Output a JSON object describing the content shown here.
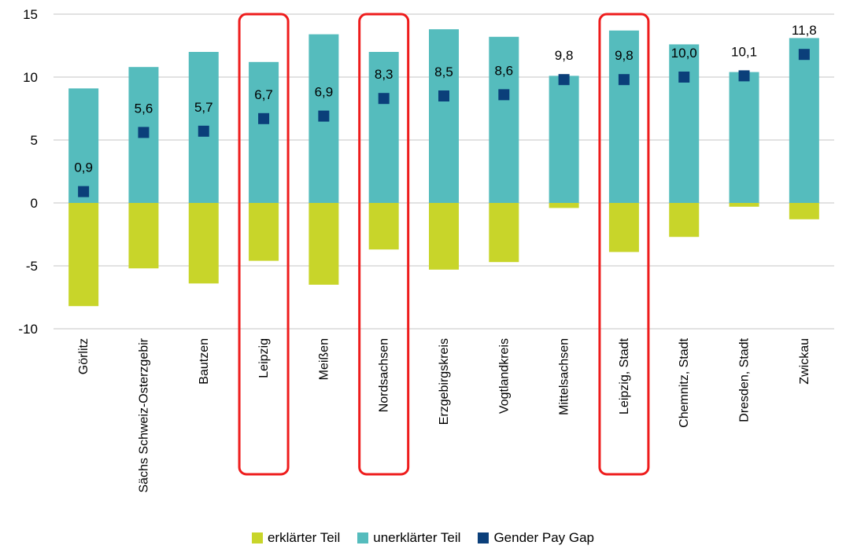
{
  "chart_data": {
    "type": "bar",
    "title": "",
    "xlabel": "",
    "ylabel": "",
    "ylim": [
      -10,
      15
    ],
    "yticks": [
      -10,
      -5,
      0,
      5,
      10,
      15
    ],
    "grid": true,
    "legend_position": "bottom",
    "categories": [
      "Görlitz",
      "Sächs Schweiz-Osterzgebir",
      "Bautzen",
      "Leipzig",
      "Meißen",
      "Nordsachsen",
      "Erzgebirgskreis",
      "Vogtlandkreis",
      "Mittelsachsen",
      "Leipzig, Stadt",
      "Chemnitz, Stadt",
      "Dresden, Stadt",
      "Zwickau"
    ],
    "series": [
      {
        "name": "erklärter Teil",
        "color": "#c8d52a",
        "values": [
          -8.2,
          -5.2,
          -6.4,
          -4.6,
          -6.5,
          -3.7,
          -5.3,
          -4.7,
          -0.4,
          -3.9,
          -2.7,
          -0.3,
          -1.3
        ]
      },
      {
        "name": "unerklärter Teil",
        "color": "#55bcbd",
        "values": [
          9.1,
          10.8,
          12.0,
          11.2,
          13.4,
          12.0,
          13.8,
          13.2,
          10.1,
          13.7,
          12.6,
          10.4,
          13.1
        ]
      },
      {
        "name": "Gender Pay Gap",
        "color": "#0b3f7a",
        "values": [
          0.9,
          5.6,
          5.7,
          6.7,
          6.9,
          8.3,
          8.5,
          8.6,
          9.8,
          9.8,
          10.0,
          10.1,
          11.8
        ]
      }
    ],
    "data_labels": [
      "0,9",
      "5,6",
      "5,7",
      "6,7",
      "6,9",
      "8,3",
      "8,5",
      "8,6",
      "9,8",
      "9,8",
      "10,0",
      "10,1",
      "11,8"
    ],
    "tick_labels": [
      "-10",
      "-5",
      "0",
      "5",
      "10",
      "15"
    ],
    "highlighted_categories": [
      "Leipzig",
      "Nordsachsen",
      "Leipzig, Stadt"
    ],
    "highlight_color": "#ee1c1c",
    "grid_color": "#d9d9d9"
  }
}
